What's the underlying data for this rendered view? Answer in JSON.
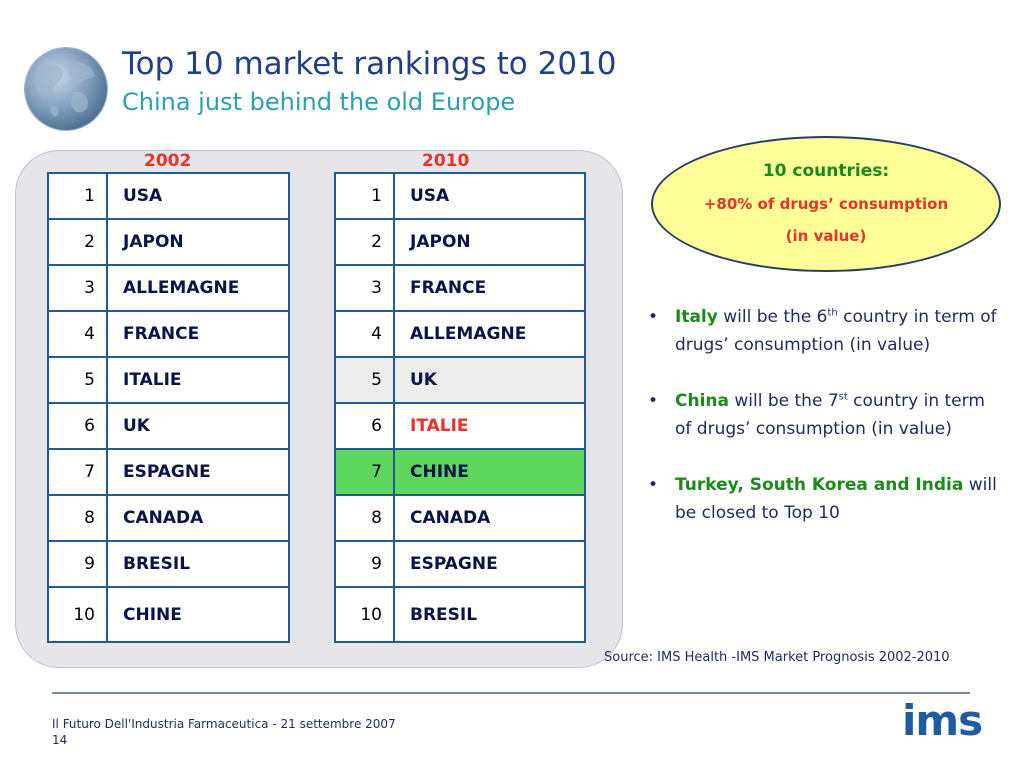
{
  "title": "Top 10 market rankings to 2010",
  "subtitle": "China just behind the old Europe",
  "rankings": {
    "year_2002": "2002",
    "year_2010": "2010",
    "rows_2002": [
      {
        "rank": "1",
        "country": "USA"
      },
      {
        "rank": "2",
        "country": "JAPON"
      },
      {
        "rank": "3",
        "country": "ALLEMAGNE"
      },
      {
        "rank": "4",
        "country": "FRANCE"
      },
      {
        "rank": "5",
        "country": "ITALIE"
      },
      {
        "rank": "6",
        "country": "UK"
      },
      {
        "rank": "7",
        "country": "ESPAGNE"
      },
      {
        "rank": "8",
        "country": "CANADA"
      },
      {
        "rank": "9",
        "country": "BRESIL"
      },
      {
        "rank": "10",
        "country": "CHINE"
      }
    ],
    "rows_2010": [
      {
        "rank": "1",
        "country": "USA"
      },
      {
        "rank": "2",
        "country": "JAPON"
      },
      {
        "rank": "3",
        "country": "FRANCE"
      },
      {
        "rank": "4",
        "country": "ALLEMAGNE"
      },
      {
        "rank": "5",
        "country": "UK"
      },
      {
        "rank": "6",
        "country": "ITALIE"
      },
      {
        "rank": "7",
        "country": "CHINE"
      },
      {
        "rank": "8",
        "country": "CANADA"
      },
      {
        "rank": "9",
        "country": "ESPAGNE"
      },
      {
        "rank": "10",
        "country": "BRESIL"
      }
    ]
  },
  "callout": {
    "heading": "10 countries:",
    "line1": "+80% of drugs’ consumption",
    "line2": "(in value)"
  },
  "bullets": [
    {
      "bold": "Italy",
      "pre": " will be the 6",
      "sup": "th",
      "rest": " country in term of drugs’ consumption (in value)"
    },
    {
      "bold": "China",
      "pre": " will be the 7",
      "sup": "st",
      "rest": " country in term of drugs’ consumption (in value)"
    },
    {
      "bold": "Turkey, South Korea and India",
      "rest": " will be closed to Top 10"
    }
  ],
  "source": "Source:  IMS Health -IMS Market Prognosis 2002-2010",
  "footer": {
    "text": "Il Futuro Dell'Industria Farmaceutica - 21 settembre 2007",
    "page": "14",
    "logo": "ims"
  },
  "colors": {
    "title": "#1f3f86",
    "subtitle": "#2aa0b4",
    "year": "#e8322a",
    "highlight_row": "#5cd65c",
    "callout_fill": "#ffff99",
    "callout_heading": "#1b8a1b",
    "accent_red": "#e8322a"
  }
}
